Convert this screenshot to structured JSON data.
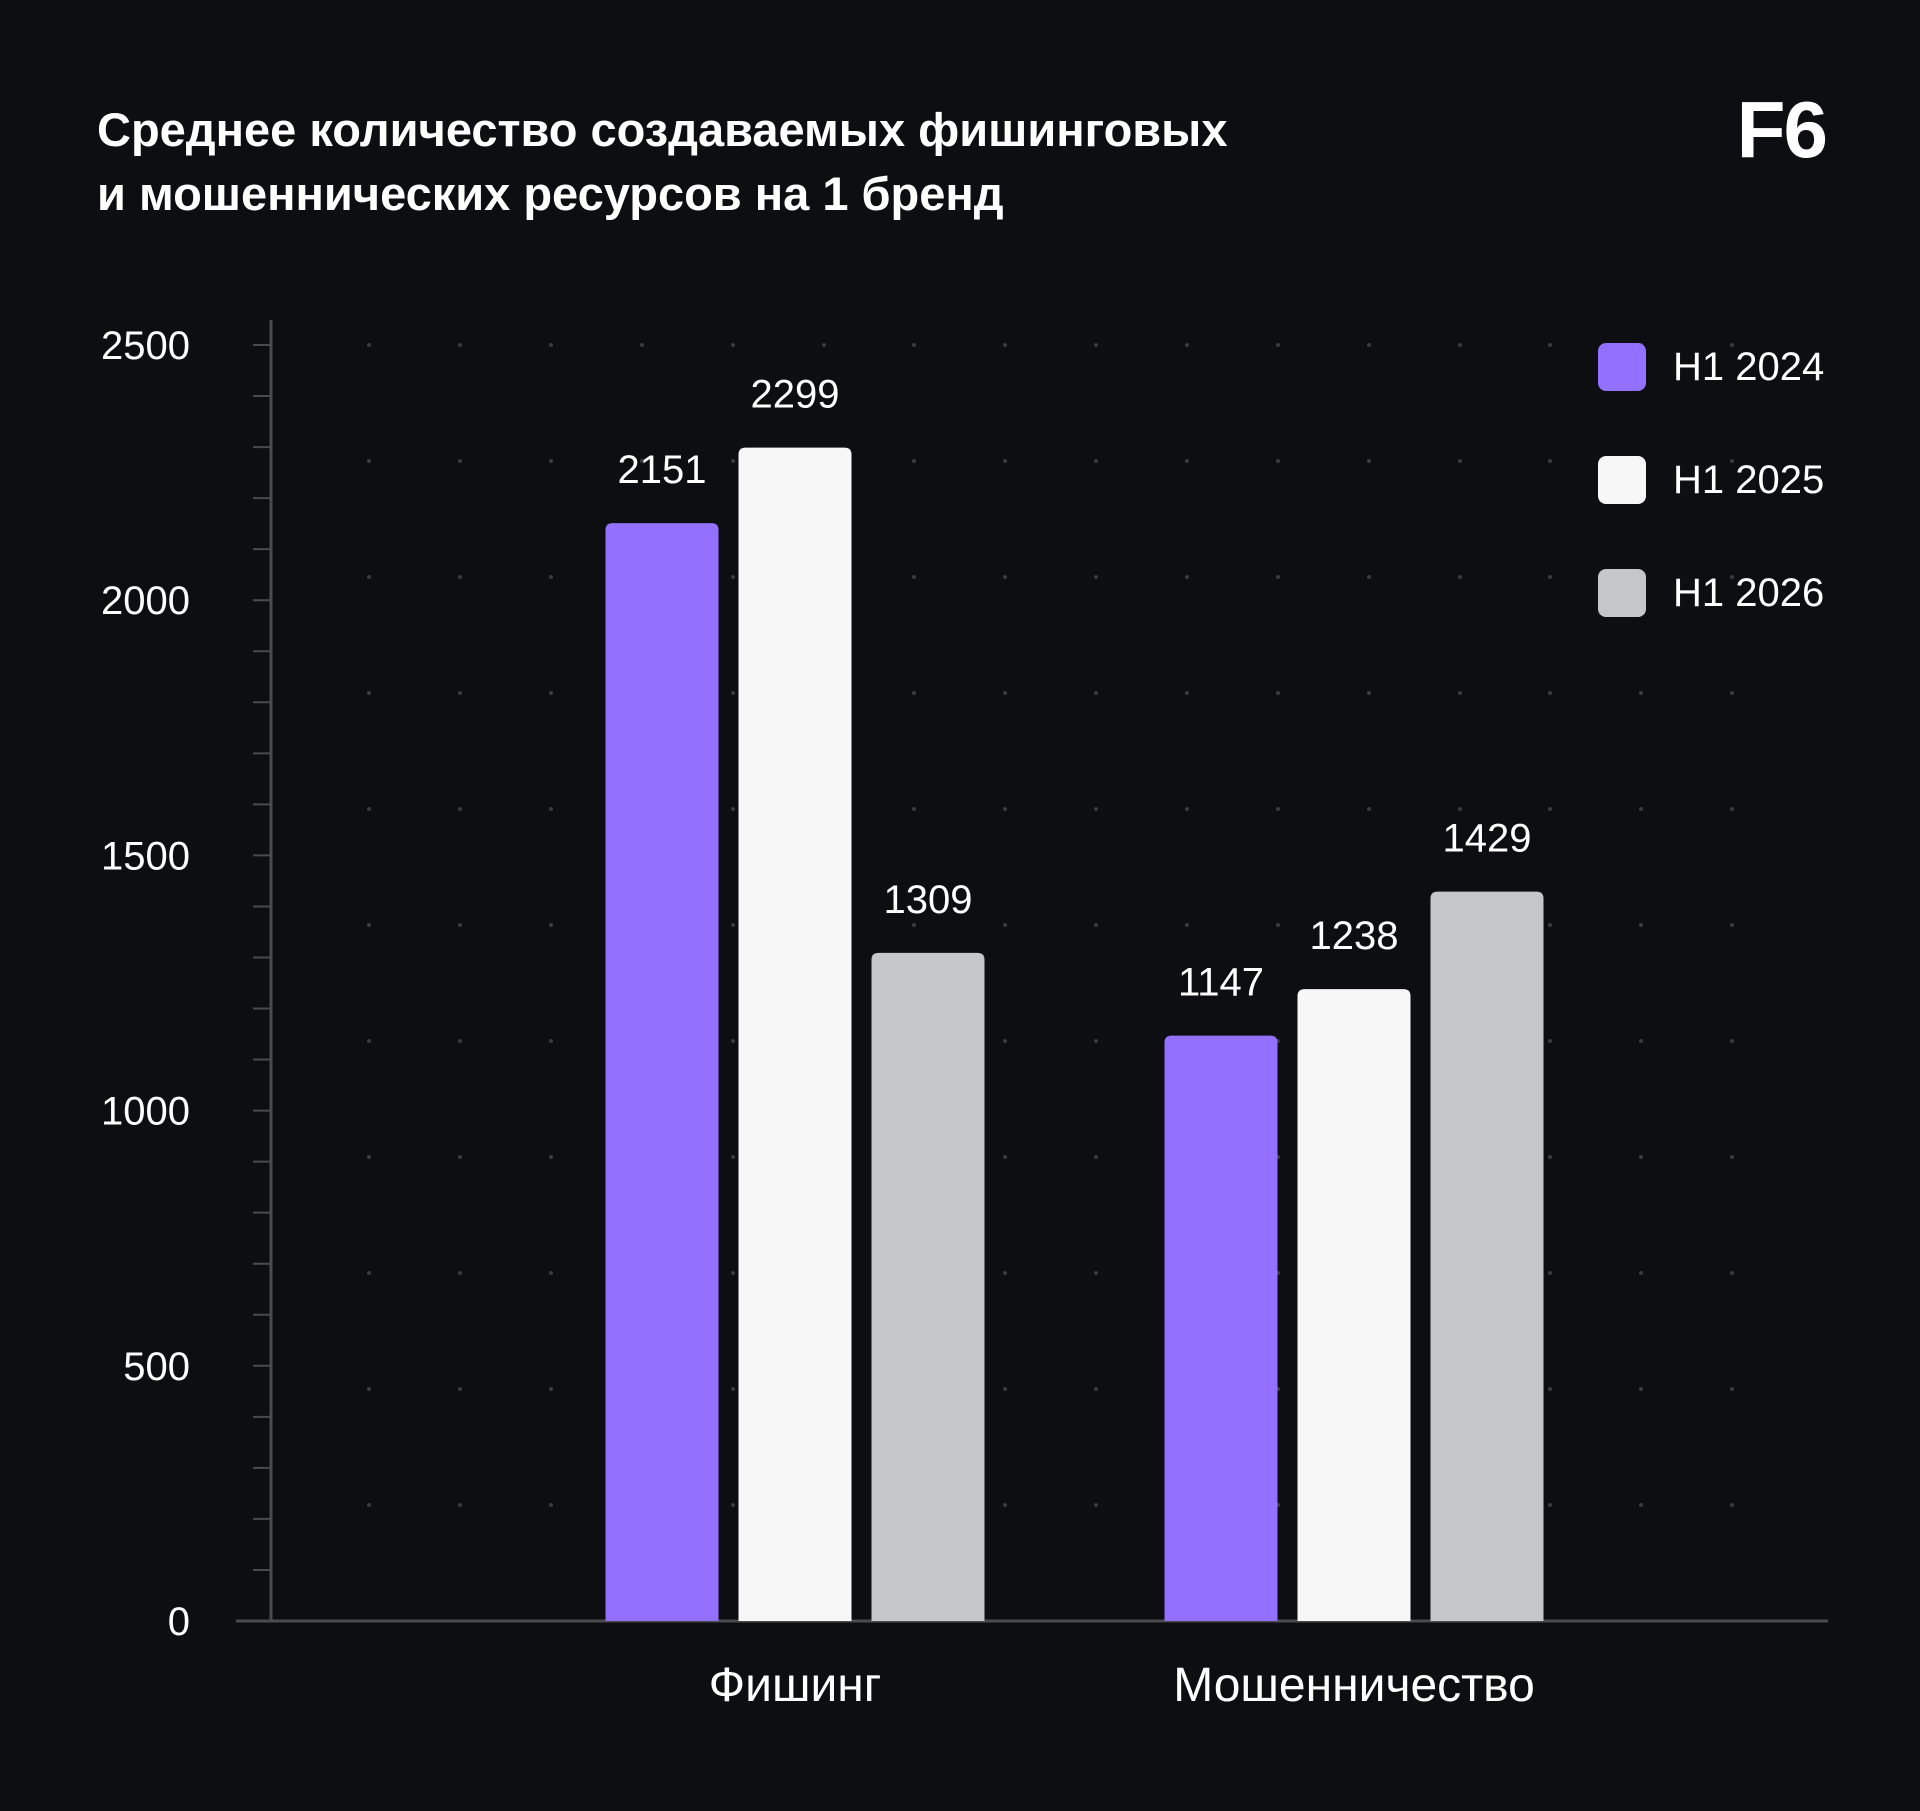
{
  "header": {
    "title_line1": "Среднее количество создаваемых фишинговых",
    "title_line2": "и мошеннических ресурсов на 1 бренд",
    "logo": "F6"
  },
  "chart_data": {
    "type": "bar",
    "categories": [
      "Фишинг",
      "Мошенничество"
    ],
    "series": [
      {
        "name": "H1 2024",
        "values": [
          2151,
          1147
        ],
        "color": "#9370fe"
      },
      {
        "name": "H1 2025",
        "values": [
          2299,
          1238
        ],
        "color": "#f7f7f7"
      },
      {
        "name": "H1 2026",
        "values": [
          1309,
          1429
        ],
        "color": "#c4c7ca"
      }
    ],
    "yticks": [
      0,
      500,
      1000,
      1500,
      2000,
      2500
    ],
    "ylim": [
      0,
      2500
    ],
    "grid": "dotted",
    "legend_position": "top-right",
    "axis_color": "#4a4b4f"
  }
}
